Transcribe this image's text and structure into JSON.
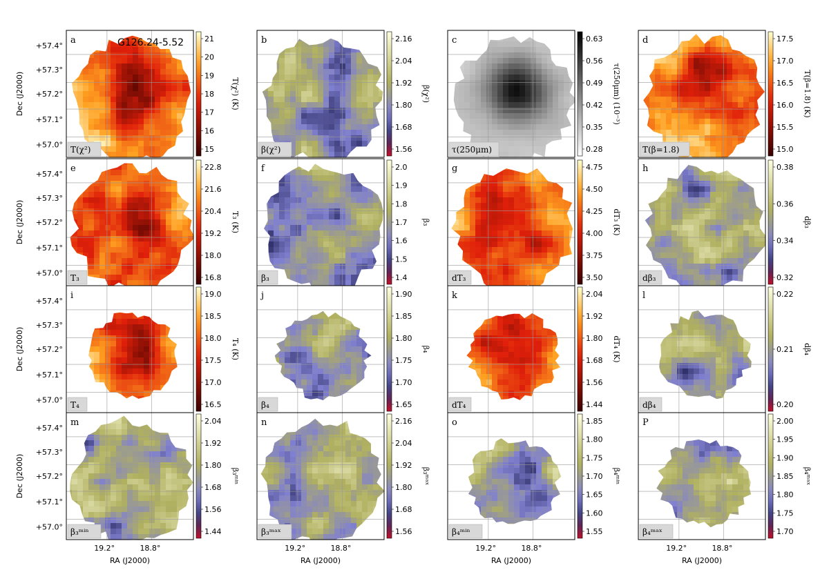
{
  "figure": {
    "source_name": "G126.24-5.52",
    "dec_label": "Dec (J2000)",
    "ra_label": "RA (J2000)",
    "dec_ticks": [
      "+57.4°",
      "+57.3°",
      "+57.2°",
      "+57.1°",
      "+57.0°"
    ],
    "ra_ticks": [
      "19.2°",
      "18.8°"
    ]
  },
  "chart_data": [
    {
      "type": "heatmap",
      "panel": "a",
      "label": "T(χ²)",
      "colorbar_title": "T(χ²) (K)",
      "colormap": "hot",
      "colorbar_ticks": [
        "21",
        "20",
        "19",
        "18",
        "17",
        "16",
        "15"
      ],
      "range": [
        15,
        21
      ]
    },
    {
      "type": "heatmap",
      "panel": "b",
      "label": "β(χ²)",
      "colorbar_title": "β(χ²)",
      "colormap": "diverging-red-blue-yellow",
      "colorbar_ticks": [
        "2.16",
        "2.04",
        "1.92",
        "1.80",
        "1.68",
        "1.56"
      ],
      "range": [
        1.5,
        2.2
      ]
    },
    {
      "type": "heatmap",
      "panel": "c",
      "label": "τ(250μm)",
      "colorbar_title": "τ(250μm) (10⁻³)",
      "colormap": "gray",
      "colorbar_ticks": [
        "0.63",
        "0.56",
        "0.49",
        "0.42",
        "0.35",
        "0.28"
      ],
      "range": [
        0.28,
        0.63
      ]
    },
    {
      "type": "heatmap",
      "panel": "d",
      "label": "T(β=1.8)",
      "colorbar_title": "T(β=1.8) (K)",
      "colormap": "hot",
      "colorbar_ticks": [
        "17.5",
        "17.0",
        "16.5",
        "16.0",
        "15.5",
        "15.0"
      ],
      "range": [
        14.8,
        17.7
      ]
    },
    {
      "type": "heatmap",
      "panel": "e",
      "label": "T₃",
      "colorbar_title": "T₃ (K)",
      "colormap": "hot",
      "colorbar_ticks": [
        "22.8",
        "21.6",
        "20.4",
        "19.2",
        "18.0",
        "16.8"
      ],
      "range": [
        16.2,
        23.5
      ]
    },
    {
      "type": "heatmap",
      "panel": "f",
      "label": "β₃",
      "colorbar_title": "β₃",
      "colormap": "diverging-red-blue-yellow",
      "colorbar_ticks": [
        "2.0",
        "1.9",
        "1.8",
        "1.7",
        "1.6",
        "1.5",
        "1.4"
      ],
      "range": [
        1.35,
        2.05
      ]
    },
    {
      "type": "heatmap",
      "panel": "g",
      "label": "dT₃",
      "colorbar_title": "dT₃ (K)",
      "colormap": "hot",
      "colorbar_ticks": [
        "4.75",
        "4.50",
        "4.25",
        "4.00",
        "3.75",
        "3.50"
      ],
      "range": [
        3.35,
        4.9
      ]
    },
    {
      "type": "heatmap",
      "panel": "h",
      "label": "dβ₃",
      "colorbar_title": "dβ₃",
      "colormap": "diverging-red-blue-yellow",
      "colorbar_ticks": [
        "0.38",
        "0.36",
        "0.34",
        "0.32"
      ],
      "range": [
        0.31,
        0.39
      ]
    },
    {
      "type": "heatmap",
      "panel": "i",
      "label": "T₄",
      "colorbar_title": "T₄ (K)",
      "colormap": "hot",
      "colorbar_ticks": [
        "19.0",
        "18.5",
        "18.0",
        "17.5",
        "17.0",
        "16.5"
      ],
      "range": [
        16.0,
        19.0
      ]
    },
    {
      "type": "heatmap",
      "panel": "j",
      "label": "β₄",
      "colorbar_title": "β₄",
      "colormap": "diverging-red-blue-yellow",
      "colorbar_ticks": [
        "1.90",
        "1.85",
        "1.80",
        "1.75",
        "1.70",
        "1.65"
      ],
      "range": [
        1.6,
        1.93
      ]
    },
    {
      "type": "heatmap",
      "panel": "k",
      "label": "dT₄",
      "colorbar_title": "dT₄ (K)",
      "colormap": "hot",
      "colorbar_ticks": [
        "2.04",
        "1.92",
        "1.80",
        "1.68",
        "1.56",
        "1.44"
      ],
      "range": [
        1.4,
        2.1
      ]
    },
    {
      "type": "heatmap",
      "panel": "l",
      "label": "dβ₄",
      "colorbar_title": "dβ₄",
      "colormap": "diverging-red-blue-yellow",
      "colorbar_ticks": [
        "0.22",
        "0.21",
        "0.20"
      ],
      "range": [
        0.197,
        0.225
      ]
    },
    {
      "type": "heatmap",
      "panel": "m",
      "label": "β₃ᵐⁱⁿ",
      "colorbar_title": "β₃ᵐⁱⁿ",
      "colormap": "diverging-red-blue-yellow",
      "colorbar_ticks": [
        "2.04",
        "1.92",
        "1.80",
        "1.68",
        "1.56",
        "1.44"
      ],
      "range": [
        1.38,
        2.1
      ]
    },
    {
      "type": "heatmap",
      "panel": "n",
      "label": "β₃ᵐᵃˣ",
      "colorbar_title": "β₃ᵐᵃˣ",
      "colormap": "diverging-red-blue-yellow",
      "colorbar_ticks": [
        "2.16",
        "2.04",
        "1.92",
        "1.80",
        "1.68",
        "1.56"
      ],
      "range": [
        1.5,
        2.22
      ]
    },
    {
      "type": "heatmap",
      "panel": "o",
      "label": "β₄ᵐⁱⁿ",
      "colorbar_title": "β₄ᵐⁱⁿ",
      "colormap": "diverging-red-blue-yellow",
      "colorbar_ticks": [
        "1.85",
        "1.80",
        "1.75",
        "1.70",
        "1.65",
        "1.60",
        "1.55"
      ],
      "range": [
        1.53,
        1.87
      ]
    },
    {
      "type": "heatmap",
      "panel": "p",
      "label": "β₄ᵐᵃˣ",
      "colorbar_title": "β₄ᵐᵃˣ",
      "colormap": "diverging-red-blue-yellow",
      "colorbar_ticks": [
        "2.00",
        "1.95",
        "1.90",
        "1.85",
        "1.80",
        "1.75",
        "1.70"
      ],
      "range": [
        1.68,
        2.02
      ]
    }
  ],
  "colors": {
    "hot_low": "#3a0000",
    "hot_mid": "#e0200a",
    "hot_high": "#ffffd0",
    "div_low": "#c0102a",
    "div_mid": "#8080d0",
    "div_high": "#ffffe0",
    "gray_low": "#ffffff",
    "gray_high": "#000000"
  }
}
